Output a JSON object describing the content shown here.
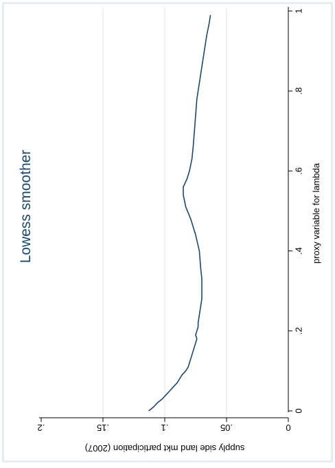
{
  "colors": {
    "plot_background": "#ffffff",
    "frame_border": "#e6ecf0",
    "gridline": "#e4e4e4",
    "axis": "#000000",
    "line": "#1a476f",
    "title": "#1a476f",
    "text": "#000000"
  },
  "chart_data": {
    "type": "line",
    "orientation": "rotated-90-clockwise",
    "title": "Lowess smoother",
    "xlabel": "proxy variable for lambda",
    "ylabel": "supply side land mkt participation (2007)",
    "xlim": [
      0,
      1
    ],
    "ylim": [
      0,
      0.2
    ],
    "x_ticks": [
      "0",
      ".2",
      ".4",
      ".6",
      ".8",
      "1"
    ],
    "y_ticks": [
      "0",
      ".05",
      ".1",
      ".15",
      ".2"
    ],
    "grid": true,
    "series": [
      {
        "x": [
          0.0,
          0.01,
          0.02,
          0.03,
          0.04,
          0.05,
          0.06,
          0.07,
          0.08,
          0.09,
          0.1,
          0.11,
          0.12,
          0.13,
          0.14,
          0.15,
          0.16,
          0.17,
          0.18,
          0.19,
          0.2,
          0.21,
          0.22,
          0.24,
          0.26,
          0.28,
          0.3,
          0.33,
          0.36,
          0.4,
          0.44,
          0.48,
          0.51,
          0.54,
          0.56,
          0.58,
          0.6,
          0.63,
          0.66,
          0.7,
          0.74,
          0.78,
          0.82,
          0.86,
          0.9,
          0.94,
          0.97,
          0.99
        ],
        "y": [
          0.113,
          0.109,
          0.106,
          0.102,
          0.099,
          0.096,
          0.093,
          0.09,
          0.088,
          0.086,
          0.083,
          0.081,
          0.08,
          0.079,
          0.078,
          0.077,
          0.076,
          0.075,
          0.074,
          0.075,
          0.074,
          0.073,
          0.073,
          0.072,
          0.071,
          0.07,
          0.07,
          0.07,
          0.071,
          0.072,
          0.075,
          0.079,
          0.083,
          0.085,
          0.085,
          0.082,
          0.08,
          0.078,
          0.077,
          0.076,
          0.075,
          0.074,
          0.072,
          0.07,
          0.068,
          0.066,
          0.064,
          0.063
        ]
      }
    ]
  }
}
